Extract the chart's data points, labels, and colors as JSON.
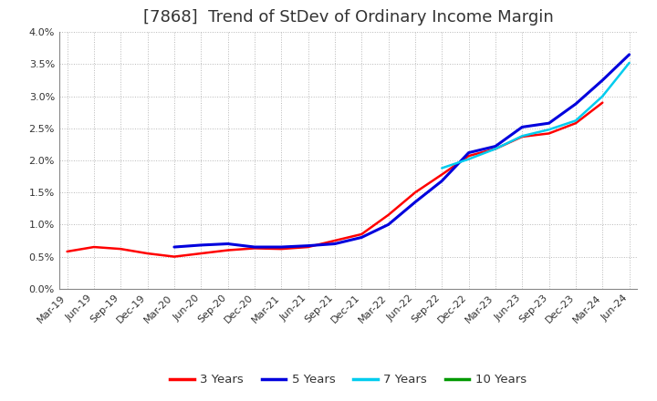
{
  "title": "[7868]  Trend of StDev of Ordinary Income Margin",
  "title_fontsize": 13,
  "title_color": "#333333",
  "background_color": "#ffffff",
  "plot_bg_color": "#ffffff",
  "grid_color": "#999999",
  "ylim": [
    0.0,
    0.04
  ],
  "yticks": [
    0.0,
    0.005,
    0.01,
    0.015,
    0.02,
    0.025,
    0.03,
    0.035,
    0.04
  ],
  "ytick_labels": [
    "0.0%",
    "0.5%",
    "1.0%",
    "1.5%",
    "2.0%",
    "2.5%",
    "3.0%",
    "3.5%",
    "4.0%"
  ],
  "x_labels": [
    "Mar-19",
    "Jun-19",
    "Sep-19",
    "Dec-19",
    "Mar-20",
    "Jun-20",
    "Sep-20",
    "Dec-20",
    "Mar-21",
    "Jun-21",
    "Sep-21",
    "Dec-21",
    "Mar-22",
    "Jun-22",
    "Sep-22",
    "Dec-22",
    "Mar-23",
    "Jun-23",
    "Sep-23",
    "Dec-23",
    "Mar-24",
    "Jun-24"
  ],
  "series": {
    "3 Years": {
      "color": "#ff0000",
      "linewidth": 1.8,
      "values": [
        0.0058,
        0.0065,
        0.0062,
        0.0055,
        0.005,
        0.0055,
        0.006,
        0.0063,
        0.0062,
        0.0065,
        0.0075,
        0.0085,
        0.0115,
        0.015,
        0.0178,
        0.0207,
        0.0218,
        0.0237,
        0.0242,
        0.0258,
        0.029,
        null
      ]
    },
    "5 Years": {
      "color": "#0000dd",
      "linewidth": 2.2,
      "values": [
        null,
        null,
        null,
        null,
        0.0065,
        0.0068,
        0.007,
        0.0065,
        0.0065,
        0.0067,
        0.007,
        0.008,
        0.01,
        0.0135,
        0.0168,
        0.0212,
        0.0222,
        0.0252,
        0.0258,
        0.0288,
        0.0325,
        0.0365
      ]
    },
    "7 Years": {
      "color": "#00ccee",
      "linewidth": 1.8,
      "values": [
        null,
        null,
        null,
        null,
        null,
        null,
        null,
        null,
        null,
        null,
        null,
        null,
        null,
        null,
        0.0188,
        0.0202,
        0.0218,
        0.0238,
        0.0248,
        0.0262,
        0.03,
        0.0352
      ]
    },
    "10 Years": {
      "color": "#009900",
      "linewidth": 1.8,
      "values": [
        null,
        null,
        null,
        null,
        null,
        null,
        null,
        null,
        null,
        null,
        null,
        null,
        null,
        null,
        null,
        null,
        null,
        null,
        null,
        null,
        null,
        null
      ]
    }
  },
  "legend_order": [
    "3 Years",
    "5 Years",
    "7 Years",
    "10 Years"
  ],
  "legend_fontsize": 9.5,
  "tick_fontsize": 8,
  "ylabel_fontsize": 8
}
